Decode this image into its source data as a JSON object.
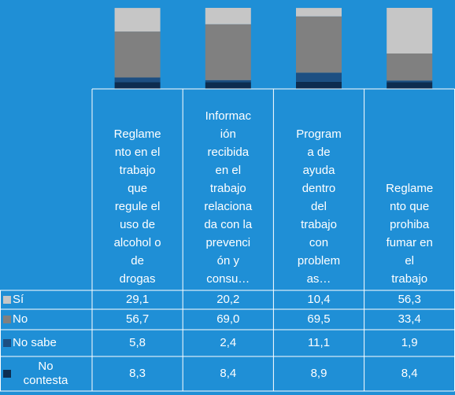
{
  "chart_data": {
    "type": "stacked_bar",
    "categories": [
      [
        "Reglame",
        "nto en el",
        "trabajo",
        "que",
        "regule el",
        "uso de",
        "alcohol o",
        "de",
        "drogas"
      ],
      [
        "Informac",
        "ión",
        "recibida",
        "en el",
        "trabajo",
        "relaciona",
        "da con la",
        "prevenci",
        "ón y",
        "consu…"
      ],
      [
        "Program",
        "a de",
        "ayuda",
        "dentro",
        "del",
        "trabajo",
        "con",
        "problem",
        "as…"
      ],
      [
        "Reglame",
        "nto que",
        "prohiba",
        "fumar en",
        "el",
        "trabajo"
      ]
    ],
    "ylim": [
      0,
      100
    ],
    "series": [
      {
        "name": "Sí",
        "color": "#c6c6c6",
        "values": [
          29.1,
          20.2,
          10.4,
          56.3
        ],
        "value_labels": [
          "29,1",
          "20,2",
          "10,4",
          "56,3"
        ]
      },
      {
        "name": "No",
        "color": "#808080",
        "values": [
          56.7,
          69.0,
          69.5,
          33.4
        ],
        "value_labels": [
          "56,7",
          "69,0",
          "69,5",
          "33,4"
        ]
      },
      {
        "name": "No sabe",
        "color": "#1d4f82",
        "values": [
          5.8,
          2.4,
          11.1,
          1.9
        ],
        "value_labels": [
          "5,8",
          "2,4",
          "11,1",
          "1,9"
        ]
      },
      {
        "name": "No contesta",
        "color": "#0d2d50",
        "values": [
          8.3,
          8.4,
          8.9,
          8.4
        ],
        "value_labels": [
          "8,3",
          "8,4",
          "8,9",
          "8,4"
        ]
      }
    ]
  }
}
